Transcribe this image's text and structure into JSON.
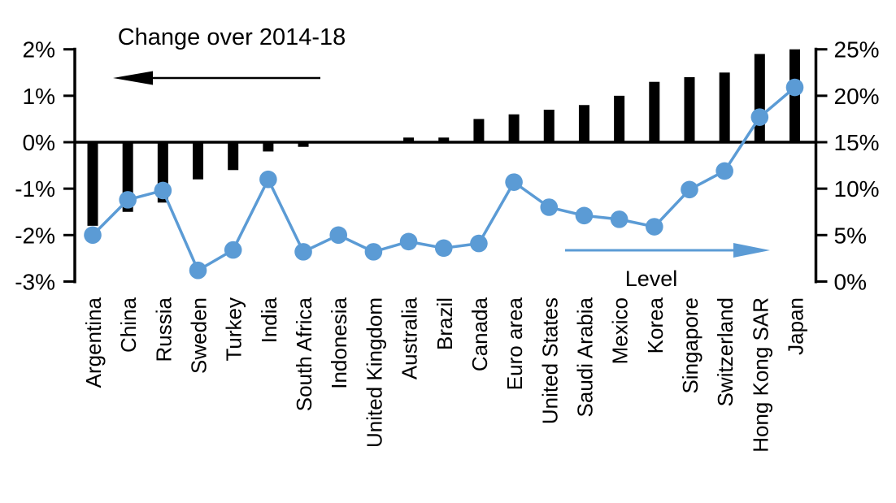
{
  "chart_data": {
    "type": "bar",
    "subtype": "dual-axis-bar-line",
    "title": "",
    "categories": [
      "Argentina",
      "China",
      "Russia",
      "Sweden",
      "Turkey",
      "India",
      "South Africa",
      "Indonesia",
      "United Kingdom",
      "Australia",
      "Brazil",
      "Canada",
      "Euro area",
      "United States",
      "Saudi Arabia",
      "Mexico",
      "Korea",
      "Singapore",
      "Switzerland",
      "Hong Kong SAR",
      "Japan"
    ],
    "series": [
      {
        "name": "Change over 2014-18",
        "type": "bar",
        "axis": "left",
        "color": "#000000",
        "values": [
          -1.8,
          -1.5,
          -1.3,
          -0.8,
          -0.6,
          -0.2,
          -0.1,
          0,
          0,
          0.1,
          0.1,
          0.5,
          0.6,
          0.7,
          0.8,
          1.0,
          1.3,
          1.4,
          1.5,
          1.9,
          2.0
        ]
      },
      {
        "name": "Level",
        "type": "line",
        "axis": "right",
        "color": "#5B9BD5",
        "values": [
          5,
          8.8,
          9.8,
          1.2,
          3.4,
          11,
          3.2,
          5,
          3.2,
          4.3,
          3.6,
          4.1,
          10.7,
          8,
          7.1,
          6.7,
          5.9,
          9.9,
          11.9,
          17.7,
          20.9
        ]
      }
    ],
    "left_axis": {
      "tick_labels": [
        "2%",
        "1%",
        "0%",
        "-1%",
        "-2%",
        "-3%"
      ],
      "min": -3,
      "max": 2,
      "unit": "%"
    },
    "right_axis": {
      "tick_labels": [
        "25%",
        "20%",
        "15%",
        "10%",
        "5%",
        "0%"
      ],
      "min": 0,
      "max": 25,
      "unit": "%"
    },
    "annotations": {
      "left_series_label": "Change over 2014-18",
      "left_arrow_direction": "left",
      "right_series_label": "Level",
      "right_arrow_direction": "right"
    },
    "legend_position": "annotated-arrows",
    "grid": "none",
    "zero_line": true
  }
}
